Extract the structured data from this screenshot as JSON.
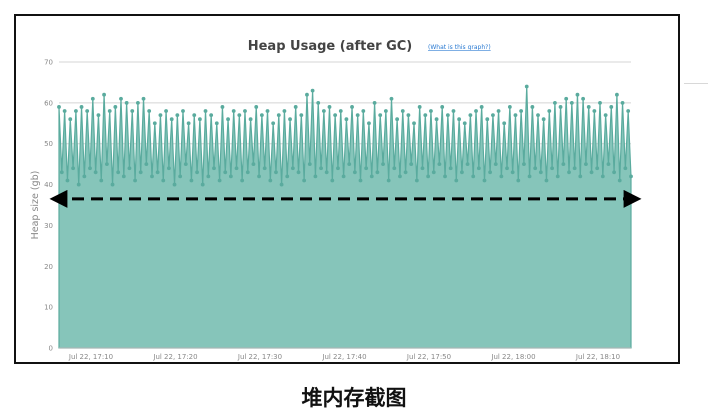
{
  "caption": "堆内存截图",
  "help_link": "(What is this graph?)",
  "colors": {
    "fill": "#86c5ba",
    "line": "#5aab9e",
    "marker": "#5aab9e",
    "grid": "#d4d4d4",
    "arrow": "#000000"
  },
  "chart_data": {
    "type": "area",
    "title": "Heap Usage (after GC)",
    "xlabel": "",
    "ylabel": "Heap size (gb)",
    "ylim": [
      0,
      70
    ],
    "yticks": [
      0,
      10,
      20,
      30,
      40,
      50,
      60,
      70
    ],
    "x_range": [
      "Jul 22, 17:03",
      "Jul 22, 18:12"
    ],
    "xticks": [
      "Jul 22, 17:10",
      "Jul 22, 17:20",
      "Jul 22, 17:30",
      "Jul 22, 17:40",
      "Jul 22, 17:50",
      "Jul 22, 18:00",
      "Jul 22, 18:10"
    ],
    "series": [
      {
        "values": [
          59,
          43,
          58,
          41,
          56,
          44,
          58,
          40,
          59,
          42,
          58,
          44,
          61,
          43,
          57,
          41,
          62,
          45,
          58,
          40,
          59,
          43,
          61,
          42,
          60,
          44,
          58,
          41,
          60,
          43,
          61,
          45,
          58,
          42,
          55,
          43,
          57,
          41,
          58,
          44,
          56,
          40,
          57,
          42,
          58,
          45,
          55,
          41,
          57,
          43,
          56,
          40,
          58,
          42,
          57,
          44,
          55,
          41,
          59,
          43,
          56,
          42,
          58,
          44,
          57,
          41,
          58,
          43,
          56,
          45,
          59,
          42,
          57,
          44,
          58,
          41,
          55,
          43,
          57,
          40,
          58,
          42,
          56,
          44,
          59,
          43,
          57,
          41,
          62,
          45,
          63,
          42,
          60,
          44,
          58,
          43,
          59,
          41,
          57,
          44,
          58,
          42,
          56,
          45,
          59,
          43,
          57,
          41,
          58,
          44,
          55,
          42,
          60,
          43,
          57,
          45,
          58,
          41,
          61,
          44,
          56,
          42,
          58,
          43,
          57,
          45,
          55,
          41,
          59,
          44,
          57,
          42,
          58,
          43,
          56,
          45,
          59,
          42,
          57,
          44,
          58,
          41,
          56,
          43,
          55,
          45,
          57,
          42,
          58,
          44,
          59,
          41,
          56,
          43,
          57,
          45,
          58,
          42,
          55,
          44,
          59,
          43,
          57,
          41,
          58,
          45,
          64,
          42,
          59,
          44,
          57,
          43,
          56,
          41,
          58,
          44,
          60,
          42,
          59,
          45,
          61,
          43,
          60,
          44,
          62,
          42,
          61,
          45,
          59,
          43,
          58,
          44,
          60,
          42,
          57,
          45,
          59,
          43,
          62,
          41,
          60,
          44,
          58,
          42
        ]
      }
    ],
    "annotation": {
      "type": "double-headed-dashed-arrow",
      "y": 36.5
    },
    "grid": true,
    "legend": "none"
  }
}
